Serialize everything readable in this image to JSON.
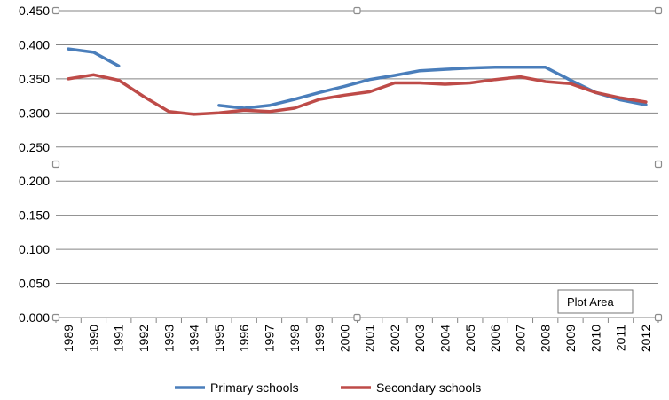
{
  "chart_data": {
    "type": "line",
    "title": "",
    "xlabel": "",
    "ylabel": "",
    "ylim": [
      0,
      0.45
    ],
    "yticks": [
      "0.000",
      "0.050",
      "0.100",
      "0.150",
      "0.200",
      "0.250",
      "0.300",
      "0.350",
      "0.400",
      "0.450"
    ],
    "categories": [
      "1989",
      "1990",
      "1991",
      "1992",
      "1993",
      "1994",
      "1995",
      "1996",
      "1997",
      "1998",
      "1999",
      "2000",
      "2001",
      "2002",
      "2003",
      "2004",
      "2005",
      "2006",
      "2007",
      "2008",
      "2009",
      "2010",
      "2011",
      "2012"
    ],
    "grid": "horizontal",
    "legend_position": "bottom",
    "series": [
      {
        "name": "Primary schools",
        "color": "#4a7ebb",
        "values": [
          0.394,
          0.389,
          0.369,
          null,
          null,
          null,
          0.311,
          0.307,
          0.311,
          0.32,
          0.33,
          0.339,
          0.349,
          0.355,
          0.362,
          0.364,
          0.366,
          0.367,
          0.367,
          0.367,
          0.348,
          0.33,
          0.319,
          0.312
        ]
      },
      {
        "name": "Secondary schools",
        "color": "#be4b48",
        "values": [
          0.35,
          0.356,
          0.348,
          0.324,
          0.302,
          0.298,
          0.3,
          0.304,
          0.302,
          0.307,
          0.32,
          0.326,
          0.331,
          0.344,
          0.344,
          0.342,
          0.344,
          0.349,
          0.353,
          0.346,
          0.343,
          0.33,
          0.322,
          0.316
        ]
      }
    ]
  },
  "tooltip": {
    "label": "Plot Area"
  }
}
